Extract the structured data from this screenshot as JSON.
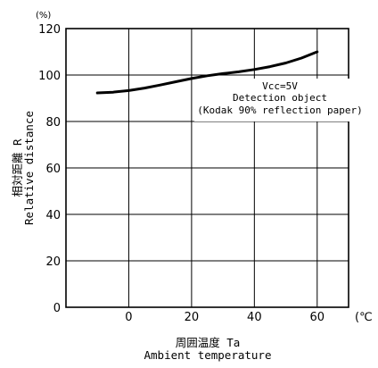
{
  "chart_data": {
    "type": "line",
    "y_unit_label": "(%)",
    "x_unit_label": "(℃",
    "xlabel_jp": "周囲温度 Ta",
    "xlabel_en": "Ambient temperature",
    "ylabel_jp": "相対距離 R",
    "ylabel_en": "Relative distance",
    "annotation": [
      "Vcc=5V",
      "Detection object",
      "(Kodak 90% reflection paper)"
    ],
    "xlim": [
      -20,
      70
    ],
    "ylim": [
      0,
      120
    ],
    "x_ticks": [
      0,
      20,
      40,
      60
    ],
    "y_ticks": [
      0,
      20,
      40,
      60,
      80,
      100,
      120
    ],
    "grid": true,
    "series": [
      {
        "x": [
          -10,
          -5,
          0,
          5,
          10,
          15,
          20,
          25,
          30,
          35,
          40,
          45,
          50,
          55,
          60
        ],
        "y": [
          92.3,
          92.6,
          93.3,
          94.4,
          95.7,
          97.1,
          98.5,
          99.7,
          100.6,
          101.4,
          102.4,
          103.6,
          105.2,
          107.3,
          110.0
        ]
      }
    ]
  }
}
